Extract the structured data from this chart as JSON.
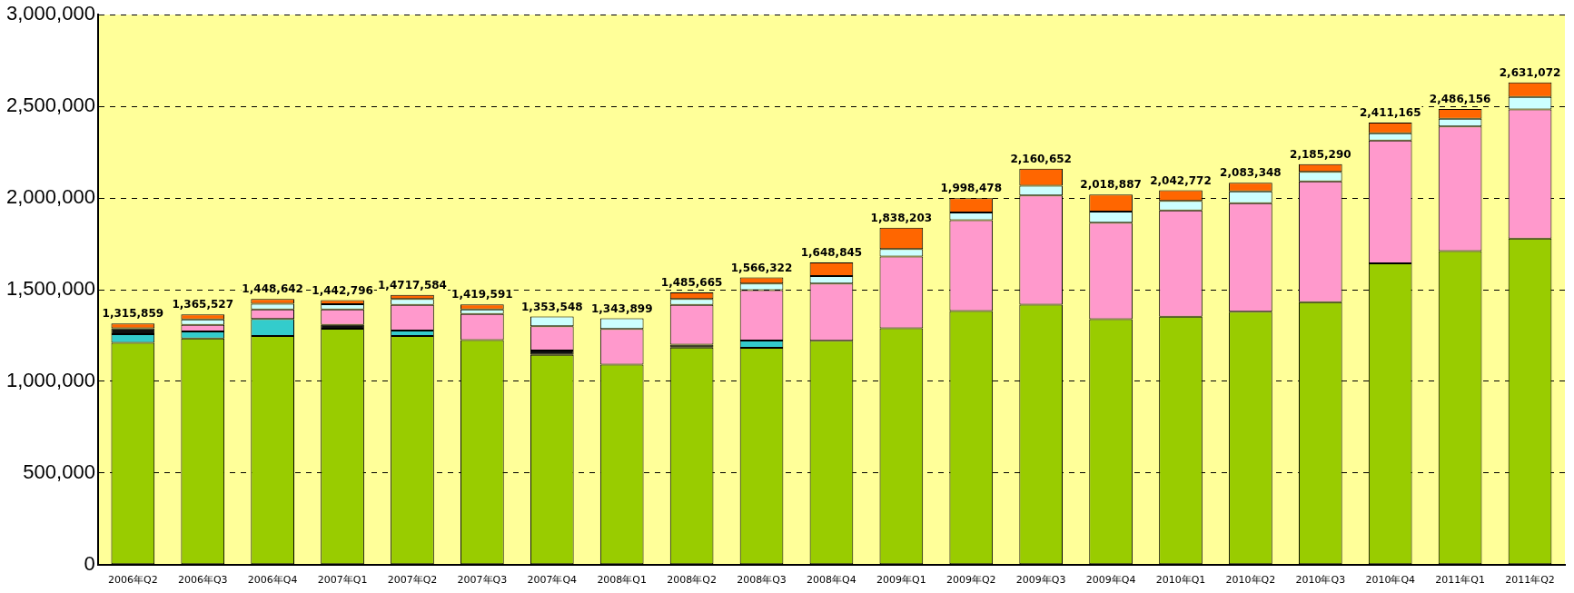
{
  "chart_data": {
    "type": "bar",
    "stacked": true,
    "categories": [
      "2006年Q2",
      "2006年Q3",
      "2006年Q4",
      "2007年Q1",
      "2007年Q2",
      "2007年Q3",
      "2007年Q4",
      "2008年Q1",
      "2008年Q2",
      "2008年Q3",
      "2008年Q4",
      "2009年Q1",
      "2009年Q2",
      "2009年Q3",
      "2009年Q4",
      "2010年Q1",
      "2010年Q2",
      "2010年Q3",
      "2010年Q4",
      "2011年Q1",
      "2011年Q2"
    ],
    "series": [
      {
        "color": "#99cc00",
        "values": [
          1209859,
          1233527,
          1247642,
          1286796,
          1247584,
          1224591,
          1144548,
          1091899,
          1183665,
          1183322,
          1221845,
          1289203,
          1383478,
          1417652,
          1338887,
          1352772,
          1380348,
          1431290,
          1644165,
          1710156,
          1778072
        ]
      },
      {
        "color": "#33cccc",
        "values": [
          48000,
          38000,
          92000,
          0,
          29000,
          0,
          0,
          0,
          0,
          39000,
          0,
          0,
          0,
          0,
          0,
          0,
          0,
          0,
          0,
          0,
          0
        ]
      },
      {
        "color": "#111111",
        "values": [
          32000,
          0,
          0,
          21000,
          0,
          0,
          23000,
          0,
          17000,
          0,
          0,
          0,
          0,
          0,
          0,
          0,
          0,
          0,
          0,
          0,
          0
        ]
      },
      {
        "color": "#ff99cc",
        "values": [
          0,
          36000,
          53000,
          85000,
          141000,
          143000,
          133000,
          194000,
          216000,
          275000,
          311000,
          392000,
          495000,
          596000,
          526000,
          580000,
          592000,
          660000,
          670000,
          680000,
          705000
        ]
      },
      {
        "color": "#ccffff",
        "values": [
          0,
          30000,
          30000,
          28000,
          32000,
          25000,
          53000,
          58000,
          32000,
          36000,
          42000,
          41000,
          42000,
          53000,
          61000,
          51000,
          64000,
          52000,
          39000,
          42000,
          68000
        ]
      },
      {
        "color": "#ff6600",
        "values": [
          26000,
          28000,
          26000,
          22000,
          22000,
          27000,
          0,
          0,
          37000,
          33000,
          74000,
          116000,
          78000,
          94000,
          93000,
          59000,
          47000,
          42000,
          58000,
          54000,
          80000
        ]
      }
    ],
    "totals": [
      "1,315,859",
      "1,365,527",
      "1,448,642",
      "1,442,796",
      "1,4717,584",
      "1,419,591",
      "1,353,548",
      "1,343,899",
      "1,485,665",
      "1,566,322",
      "1,648,845",
      "1,838,203",
      "1,998,478",
      "2,160,652",
      "2,018,887",
      "2,042,772",
      "2,083,348",
      "2,185,290",
      "2,411,165",
      "2,486,156",
      "2,631,072"
    ],
    "ylim": [
      0,
      3000000
    ],
    "yticks": [
      {
        "value": 0,
        "label": "0"
      },
      {
        "value": 500000,
        "label": "500,000"
      },
      {
        "value": 1000000,
        "label": "1,000,000"
      },
      {
        "value": 1500000,
        "label": "1,500,000"
      },
      {
        "value": 2000000,
        "label": "2,000,000"
      },
      {
        "value": 2500000,
        "label": "2,500,000"
      },
      {
        "value": 3000000,
        "label": "3,000,000"
      }
    ],
    "grid": "y",
    "legend": false
  }
}
